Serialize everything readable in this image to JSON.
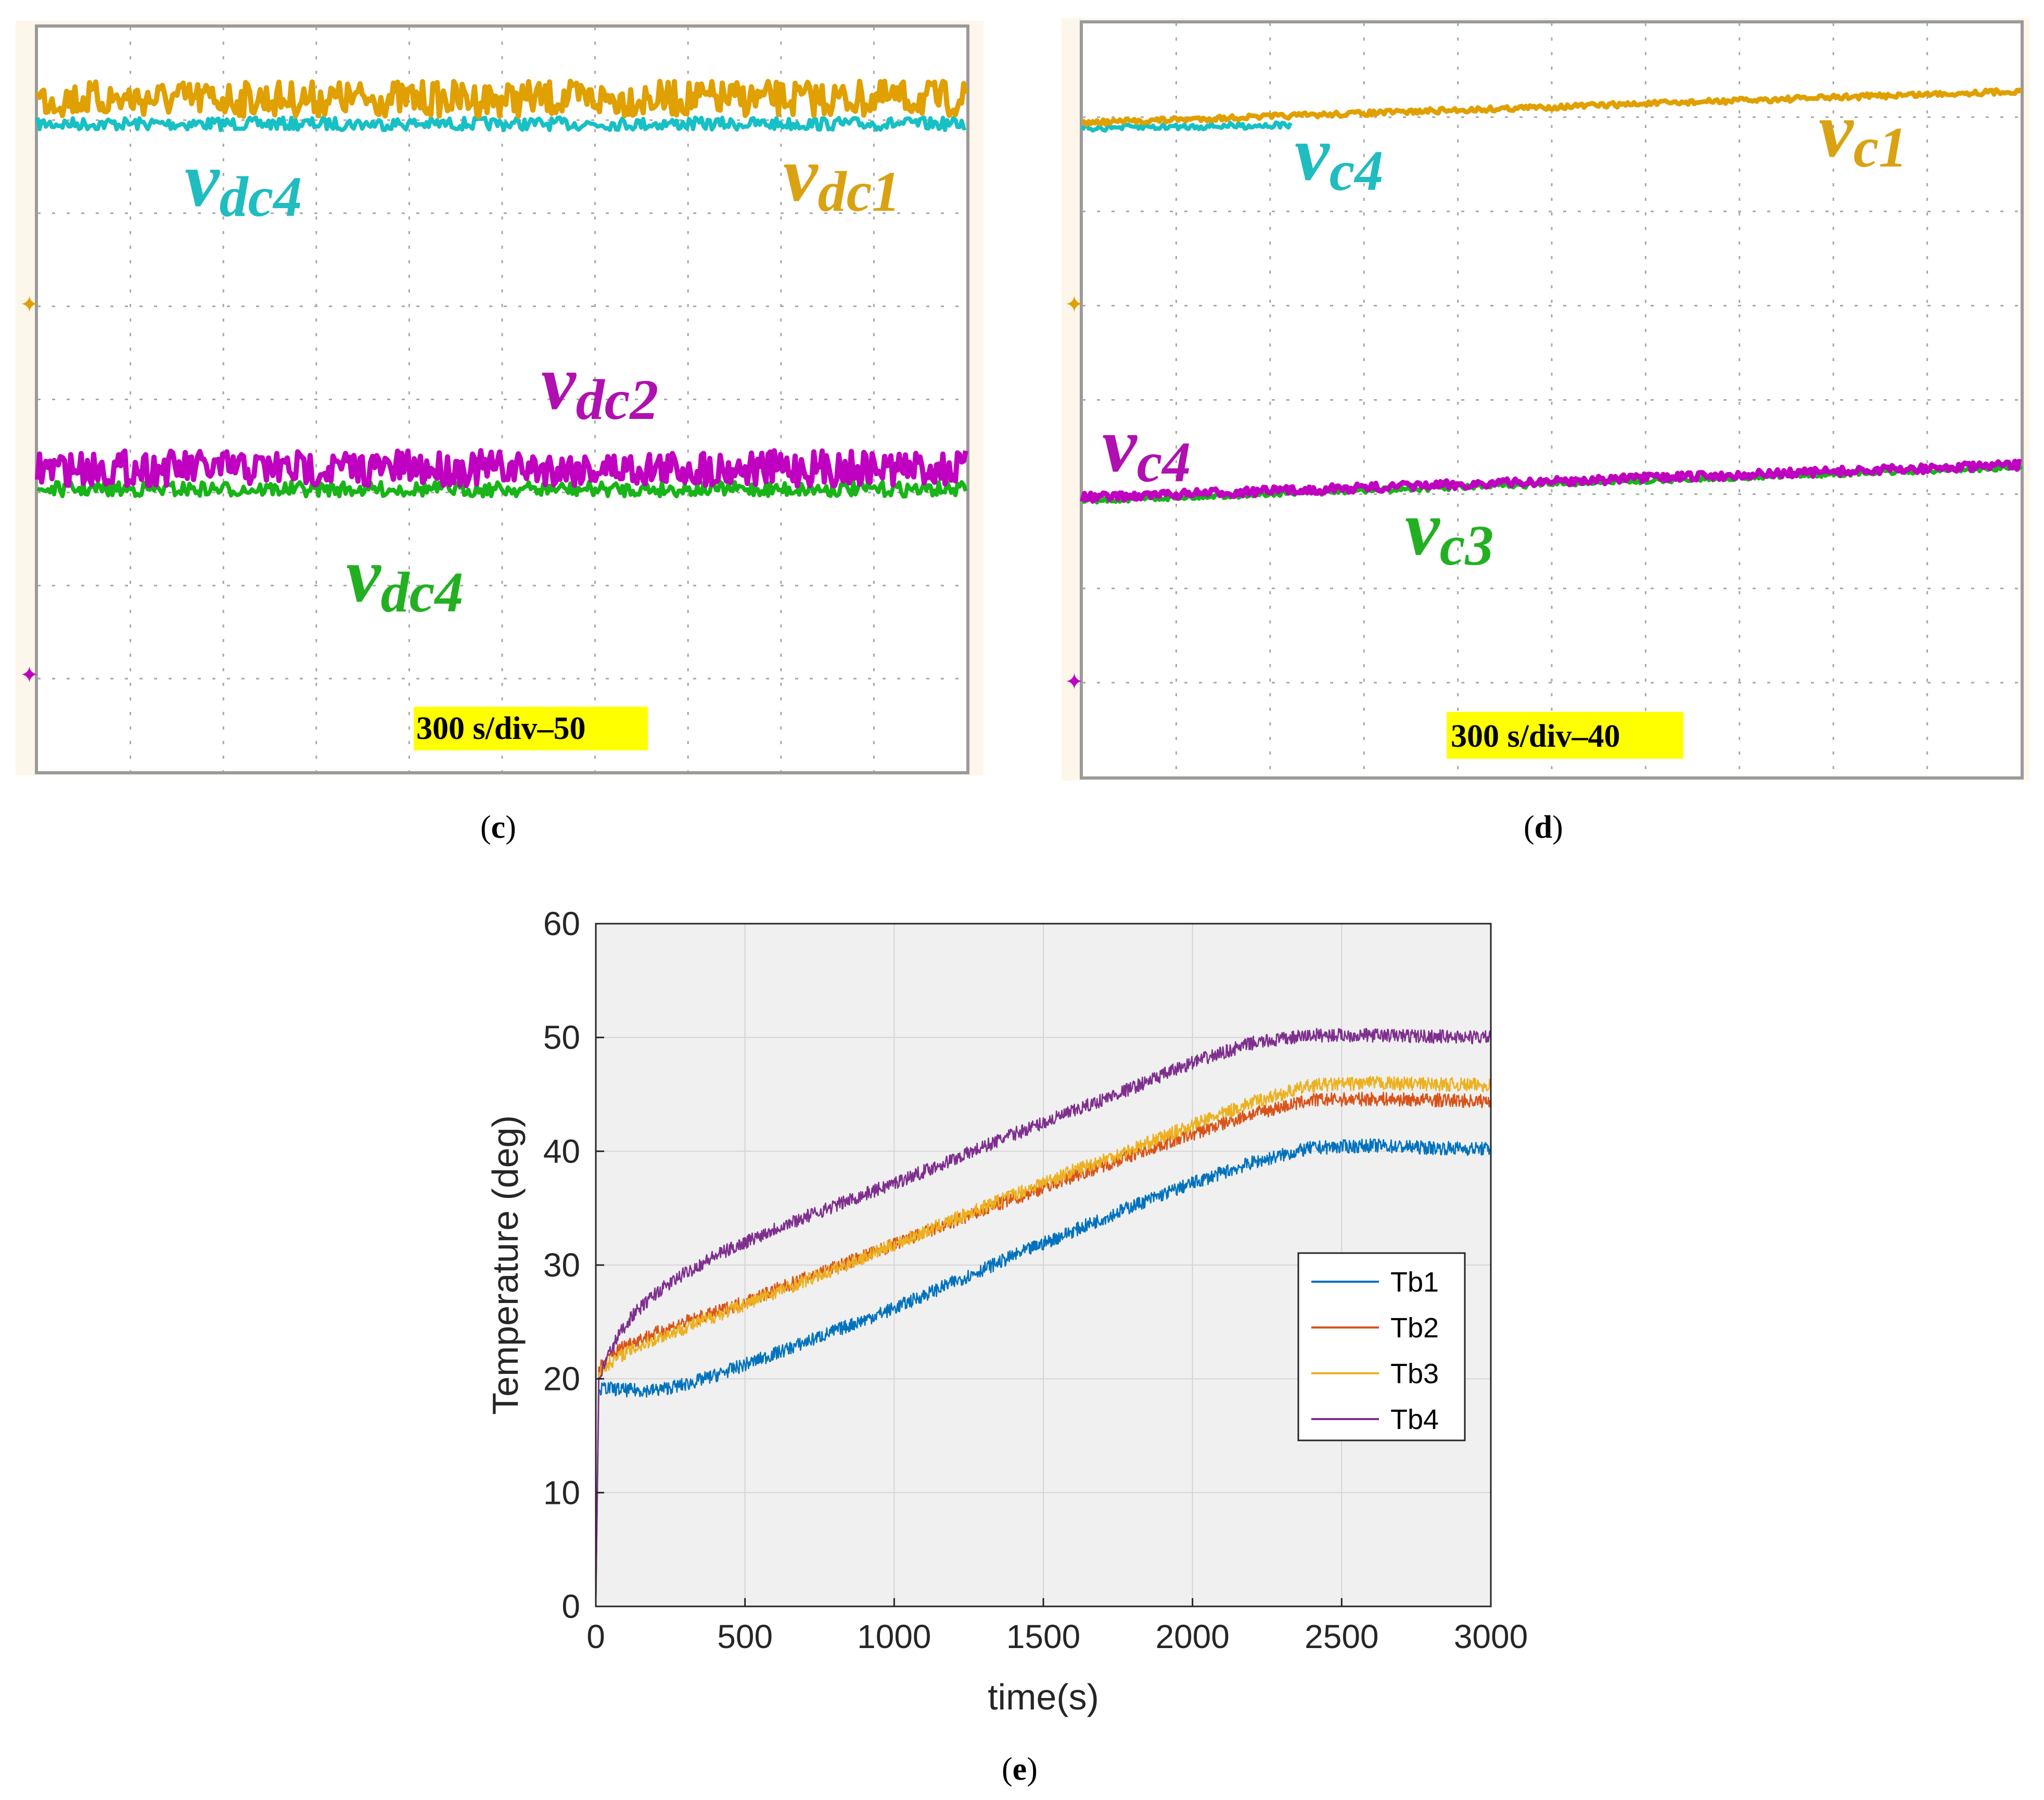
{
  "panels": {
    "c": {
      "caption_letter": "c",
      "timebase_badge": "300 s/div–50",
      "labels": [
        {
          "main": "v",
          "sub": "dc4",
          "color": "#1fbcc0",
          "trace": "cyan"
        },
        {
          "main": "v",
          "sub": "dc1",
          "color": "#d9a213",
          "trace": "orange"
        },
        {
          "main": "v",
          "sub": "dc2",
          "color": "#b010b0",
          "trace": "magenta"
        },
        {
          "main": "v",
          "sub": "dc4",
          "color": "#22b022",
          "trace": "green"
        }
      ]
    },
    "d": {
      "caption_letter": "d",
      "timebase_badge": "300 s/div–40",
      "labels": [
        {
          "main": "v",
          "sub": "c4",
          "color": "#1fbcc0",
          "trace": "cyan"
        },
        {
          "main": "v",
          "sub": "c1",
          "color": "#d9a213",
          "trace": "orange"
        },
        {
          "main": "v",
          "sub": "c4",
          "color": "#b010b0",
          "trace": "magenta"
        },
        {
          "main": "v",
          "sub": "c3",
          "color": "#22b022",
          "trace": "green"
        }
      ]
    }
  },
  "colors": {
    "orange": "#e0a000",
    "cyan": "#17c0c4",
    "magenta": "#c000c0",
    "green": "#18b418",
    "badge": "#ffff00",
    "tb1": "#0072bd",
    "tb2": "#d95319",
    "tb3": "#edb120",
    "tb4": "#7e2f8e"
  },
  "chart_data": {
    "type": "line",
    "caption_letter": "e",
    "xlabel": "time(s)",
    "ylabel": "Temperature (deg)",
    "xlim": [
      0,
      3000
    ],
    "ylim": [
      0,
      60
    ],
    "xticks": [
      0,
      500,
      1000,
      1500,
      2000,
      2500,
      3000
    ],
    "yticks": [
      0,
      10,
      20,
      30,
      40,
      50,
      60
    ],
    "grid": true,
    "legend_position": "right-middle",
    "series": [
      {
        "name": "Tb1",
        "color": "#0072bd",
        "x": [
          0,
          10,
          30,
          100,
          200,
          300,
          400,
          600,
          800,
          1000,
          1200,
          1400,
          1600,
          1800,
          2000,
          2200,
          2400,
          2600,
          2800,
          3000
        ],
        "y": [
          0,
          19,
          19.2,
          19,
          19,
          19.5,
          20.3,
          22.2,
          24.2,
          26.2,
          28.5,
          30.8,
          33.0,
          35.2,
          37.2,
          39.0,
          40.3,
          40.5,
          40.3,
          40.2
        ]
      },
      {
        "name": "Tb2",
        "color": "#d95319",
        "x": [
          0,
          10,
          50,
          100,
          200,
          300,
          400,
          600,
          800,
          1000,
          1200,
          1400,
          1600,
          1800,
          2000,
          2200,
          2400,
          2600,
          2800,
          3000
        ],
        "y": [
          0,
          21,
          22,
          23,
          24,
          25,
          25.8,
          27.8,
          29.8,
          31.8,
          33.8,
          35.8,
          37.8,
          39.7,
          41.5,
          43.3,
          44.5,
          44.6,
          44.5,
          44.4
        ]
      },
      {
        "name": "Tb3",
        "color": "#edb120",
        "x": [
          0,
          10,
          50,
          100,
          200,
          300,
          400,
          600,
          800,
          1000,
          1200,
          1400,
          1600,
          1800,
          2000,
          2200,
          2400,
          2600,
          2800,
          3000
        ],
        "y": [
          0,
          20.5,
          21.5,
          22.3,
          23.5,
          24.5,
          25.5,
          27.6,
          29.6,
          31.8,
          34.0,
          36.2,
          38.3,
          40.2,
          42.3,
          44.3,
          45.8,
          46.0,
          45.9,
          45.8
        ]
      },
      {
        "name": "Tb4",
        "color": "#7e2f8e",
        "x": [
          0,
          10,
          40,
          80,
          120,
          200,
          300,
          400,
          600,
          800,
          1000,
          1200,
          1400,
          1600,
          1800,
          2000,
          2200,
          2400,
          2600,
          2800,
          3000
        ],
        "y": [
          0,
          20,
          22,
          24,
          25.5,
          27.5,
          29.3,
          30.8,
          33.2,
          35.2,
          37.2,
          39.3,
          41.5,
          43.5,
          45.6,
          47.8,
          49.5,
          50.2,
          50.2,
          50.1,
          50.0
        ]
      }
    ]
  }
}
